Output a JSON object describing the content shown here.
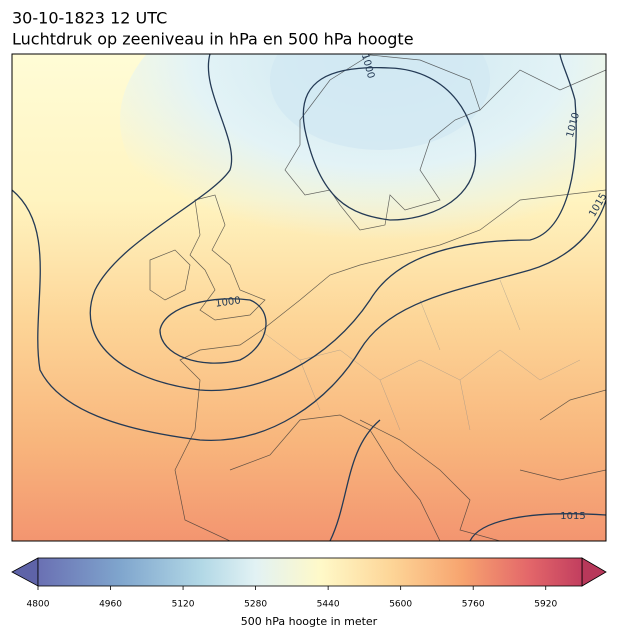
{
  "header": {
    "date": "30-10-1823 12 UTC",
    "title": "Luchtdruk op zeeniveau in hPa en 500 hPa hoogte"
  },
  "contour_labels": [
    "1000",
    "1010",
    "1015",
    "1000",
    "1015"
  ],
  "colorbar": {
    "label": "500 hPa hoogte in meter",
    "lim": [
      4800,
      6000
    ],
    "ticks": [
      4800,
      4960,
      5120,
      5280,
      5440,
      5600,
      5760,
      5920
    ]
  }
}
